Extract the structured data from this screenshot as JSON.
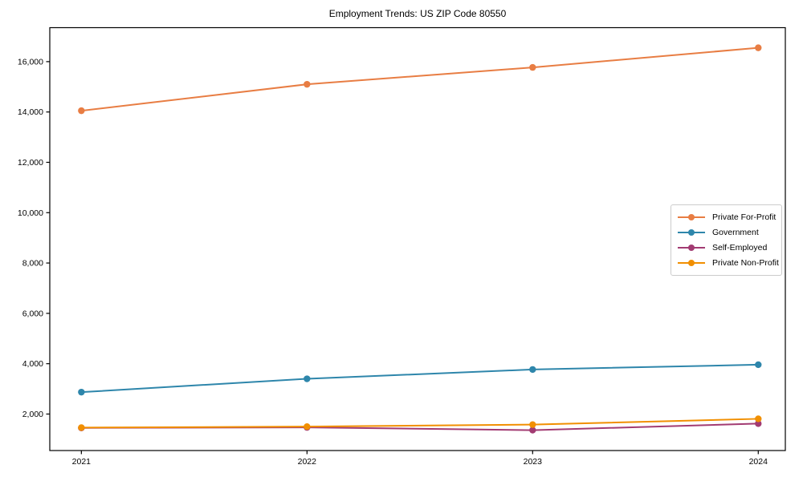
{
  "title": "Employment Trends: US ZIP Code 80550",
  "chart_data": {
    "type": "line",
    "title": "Employment Trends: US ZIP Code 80550",
    "xlabel": "",
    "ylabel": "",
    "x": [
      2021,
      2022,
      2023,
      2024
    ],
    "x_tick_labels": [
      "2021",
      "2022",
      "2023",
      "2024"
    ],
    "y_ticks": [
      2000,
      4000,
      6000,
      8000,
      10000,
      12000,
      14000,
      16000
    ],
    "y_tick_labels": [
      "2,000",
      "4,000",
      "6,000",
      "8,000",
      "10,000",
      "12,000",
      "14,000",
      "16,000"
    ],
    "series": [
      {
        "name": "Private For-Profit",
        "color": "#E87D43",
        "values": [
          14050,
          15100,
          15770,
          16550
        ]
      },
      {
        "name": "Government",
        "color": "#2E86AB",
        "values": [
          2870,
          3400,
          3770,
          3960
        ]
      },
      {
        "name": "Self-Employed",
        "color": "#A23B72",
        "values": [
          1450,
          1470,
          1360,
          1620
        ]
      },
      {
        "name": "Private Non-Profit",
        "color": "#F18F01",
        "values": [
          1460,
          1500,
          1580,
          1810
        ]
      }
    ],
    "xlim": [
      2020.86,
      2024.12
    ],
    "ylim": [
      550,
      17350
    ],
    "grid": false,
    "legend_position": "center-right",
    "axis_color": "#000000",
    "background_color": "#ffffff"
  }
}
